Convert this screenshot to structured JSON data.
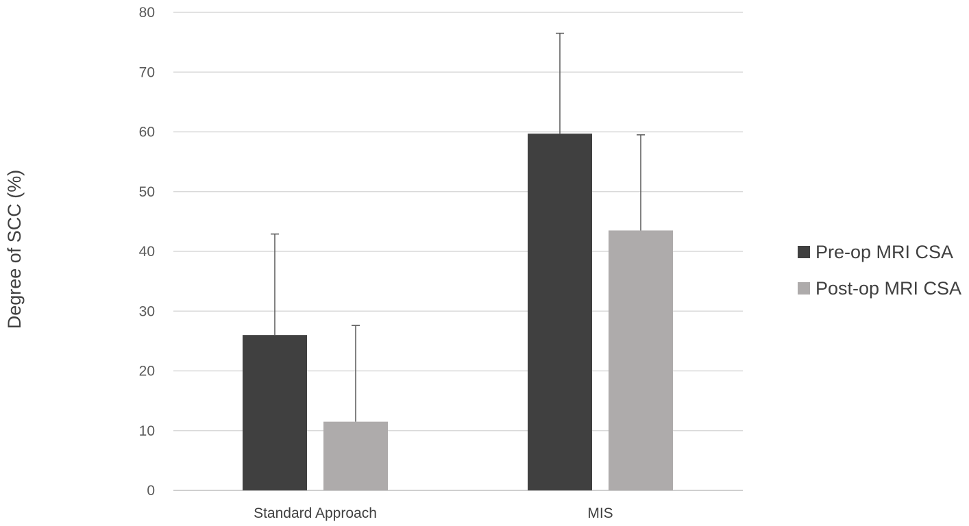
{
  "chart_data": {
    "type": "bar",
    "title": "",
    "xlabel": "",
    "ylabel": "Degree of SCC (%)",
    "ylim": [
      0,
      80
    ],
    "yticks": [
      0,
      10,
      20,
      30,
      40,
      50,
      60,
      70,
      80
    ],
    "grid": true,
    "legend_position": "right",
    "categories": [
      "Standard Approach",
      "MIS"
    ],
    "series": [
      {
        "name": "Pre-op MRI CSA",
        "color": "#404040",
        "values": [
          26,
          59.7
        ],
        "error_upper": [
          42.9,
          76.5
        ]
      },
      {
        "name": "Post-op MRI CSA",
        "color": "#aeabab",
        "values": [
          11.5,
          43.5
        ],
        "error_upper": [
          27.6,
          59.5
        ]
      }
    ]
  }
}
